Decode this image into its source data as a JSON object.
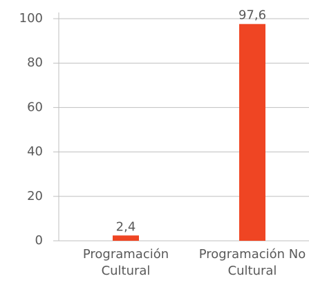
{
  "chart_data": {
    "type": "bar",
    "categories": [
      "Programación Cultural",
      "Programación No Cultural"
    ],
    "values": [
      2.4,
      97.6
    ],
    "value_labels": [
      "2,4",
      "97,6"
    ],
    "color": "#ef4523",
    "ylim": [
      0,
      100
    ],
    "yticks": [
      0,
      20,
      40,
      60,
      80,
      100
    ],
    "grid": true
  }
}
